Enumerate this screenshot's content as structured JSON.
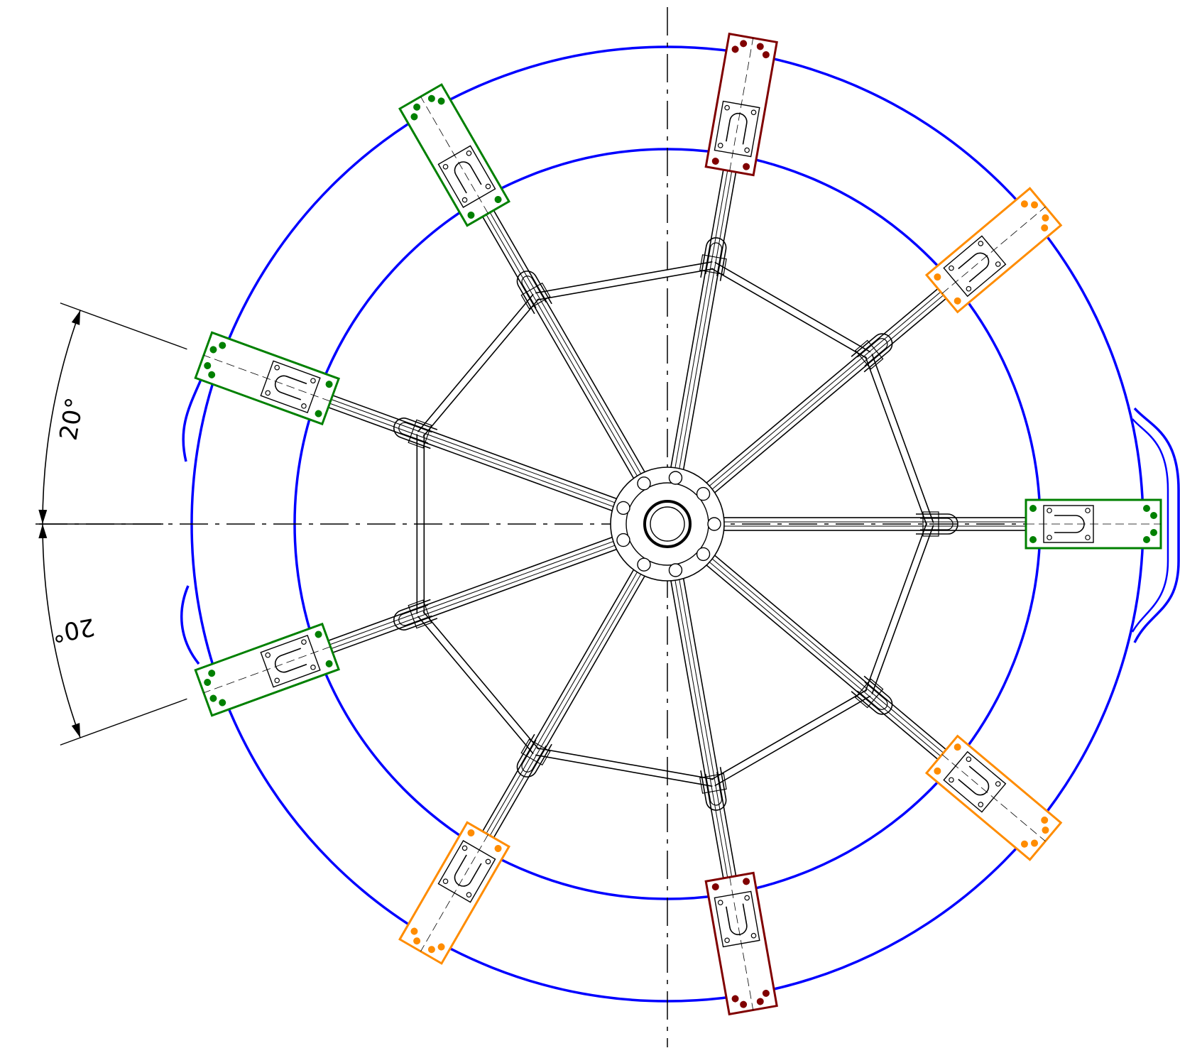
{
  "drawing": {
    "dimensions": [
      {
        "label": "20°",
        "from_angle_deg": 180,
        "to_angle_deg": 160
      },
      {
        "label": "20°",
        "from_angle_deg": 180,
        "to_angle_deg": 200
      }
    ],
    "colors": {
      "outline": "#0000ff",
      "line": "#000000",
      "green_pad": "#008000",
      "orange_pad": "#ff8c00",
      "maroon_pad": "#800000"
    },
    "arms": [
      {
        "angle_deg": 0,
        "pad": "green_pad"
      },
      {
        "angle_deg": 40,
        "pad": "orange_pad"
      },
      {
        "angle_deg": 80,
        "pad": "maroon_pad"
      },
      {
        "angle_deg": 120,
        "pad": "green_pad"
      },
      {
        "angle_deg": 160,
        "pad": "green_pad"
      },
      {
        "angle_deg": 200,
        "pad": "green_pad"
      },
      {
        "angle_deg": 240,
        "pad": "orange_pad"
      },
      {
        "angle_deg": 280,
        "pad": "maroon_pad"
      },
      {
        "angle_deg": 320,
        "pad": "orange_pad"
      }
    ]
  }
}
